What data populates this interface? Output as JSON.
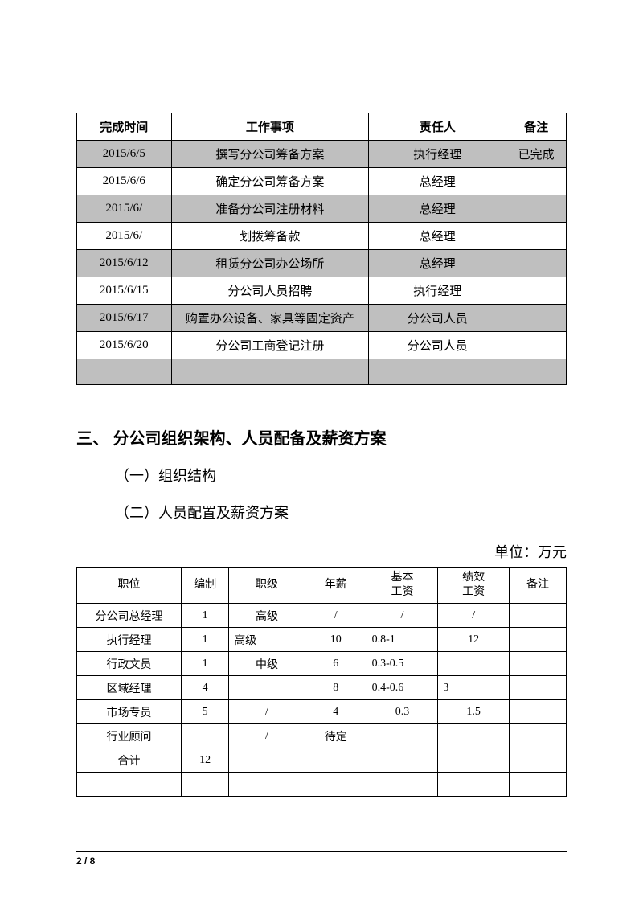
{
  "table1": {
    "headers": [
      "完成时间",
      "工作事项",
      "责任人",
      "备注"
    ],
    "rows": [
      {
        "date": "2015/6/5",
        "task": "撰写分公司筹备方案",
        "person": "执行经理",
        "note": "已完成",
        "shaded": true
      },
      {
        "date": "2015/6/6",
        "task": "确定分公司筹备方案",
        "person": "总经理",
        "note": "",
        "shaded": false
      },
      {
        "date": "2015/6/",
        "task": "准备分公司注册材料",
        "person": "总经理",
        "note": "",
        "shaded": true
      },
      {
        "date": "2015/6/",
        "task": "划拨筹备款",
        "person": "总经理",
        "note": "",
        "shaded": false
      },
      {
        "date": "2015/6/12",
        "task": "租赁分公司办公场所",
        "person": "总经理",
        "note": "",
        "shaded": true
      },
      {
        "date": "2015/6/15",
        "task": "分公司人员招聘",
        "person": "执行经理",
        "note": "",
        "shaded": false
      },
      {
        "date": "2015/6/17",
        "task": "购置办公设备、家具等固定资产",
        "person": "分公司人员",
        "note": "",
        "shaded": true
      },
      {
        "date": "2015/6/20",
        "task": "分公司工商登记注册",
        "person": "分公司人员",
        "note": "",
        "shaded": false
      },
      {
        "date": "",
        "task": "",
        "person": "",
        "note": "",
        "shaded": true
      }
    ]
  },
  "section": {
    "heading": "三、  分公司组织架构、人员配备及薪资方案",
    "sub1": "（一）组织结构",
    "sub2": "（二）人员配置及薪资方案",
    "unit": "单位：万元"
  },
  "table2": {
    "headers": [
      "职位",
      "编制",
      "职级",
      "年薪",
      "基本\n工资",
      "绩效\n工资",
      "备注"
    ],
    "rows": [
      {
        "pos": "分公司总经理",
        "count": "1",
        "level": "高级",
        "salary": "/",
        "base": "/",
        "perf": "/",
        "note": "",
        "baseAlign": "center",
        "levelAlign": "center",
        "perfAlign": "center"
      },
      {
        "pos": "执行经理",
        "count": "1",
        "level": "高级",
        "salary": "10",
        "base": "0.8-1",
        "perf": "12",
        "note": "",
        "baseAlign": "left",
        "levelAlign": "left",
        "perfAlign": "center"
      },
      {
        "pos": "行政文员",
        "count": "1",
        "level": "中级",
        "salary": "6",
        "base": "0.3-0.5",
        "perf": "",
        "note": "",
        "baseAlign": "left",
        "levelAlign": "center",
        "perfAlign": "center"
      },
      {
        "pos": "区域经理",
        "count": "4",
        "level": "",
        "salary": "8",
        "base": "0.4-0.6",
        "perf": "3",
        "note": "",
        "baseAlign": "left",
        "levelAlign": "center",
        "perfAlign": "left"
      },
      {
        "pos": "市场专员",
        "count": "5",
        "level": "/",
        "salary": "4",
        "base": "0.3",
        "perf": "1.5",
        "note": "",
        "baseAlign": "center",
        "levelAlign": "center",
        "perfAlign": "center"
      },
      {
        "pos": "行业顾问",
        "count": "",
        "level": "/",
        "salary": "待定",
        "base": "",
        "perf": "",
        "note": "",
        "baseAlign": "center",
        "levelAlign": "center",
        "perfAlign": "center"
      },
      {
        "pos": "合计",
        "count": "12",
        "level": "",
        "salary": "",
        "base": "",
        "perf": "",
        "note": "",
        "baseAlign": "center",
        "levelAlign": "center",
        "perfAlign": "center"
      },
      {
        "pos": "",
        "count": "",
        "level": "",
        "salary": "",
        "base": "",
        "perf": "",
        "note": "",
        "baseAlign": "center",
        "levelAlign": "center",
        "perfAlign": "center"
      }
    ]
  },
  "footer": {
    "page": "2 / 8"
  },
  "colors": {
    "shaded": "#bfbfbf",
    "border": "#000000",
    "text": "#000000",
    "background": "#ffffff"
  }
}
